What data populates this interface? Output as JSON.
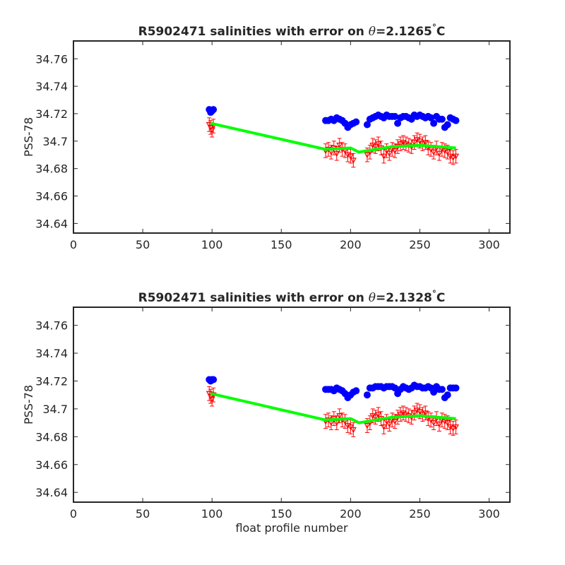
{
  "chart_data": [
    {
      "type": "scatter",
      "title_prefix": "R5902471 salinities with error on ",
      "title_theta": "θ",
      "title_value": "=2.1265",
      "title_degree": "°",
      "title_unit": "C",
      "xlabel": "",
      "ylabel": "PSS-78",
      "xlim": [
        0,
        315
      ],
      "ylim": [
        34.633,
        34.773
      ],
      "xticks": [
        0,
        50,
        100,
        150,
        200,
        250,
        300
      ],
      "yticks": [
        34.64,
        34.66,
        34.68,
        34.7,
        34.72,
        34.74,
        34.76
      ],
      "ytick_labels": [
        "34.64",
        "34.66",
        "34.68",
        "34.7",
        "34.72",
        "34.74",
        "34.76"
      ],
      "grid": false,
      "series": [
        {
          "role": "uncalibrated salinity",
          "color": "#0000ff",
          "marker": "filled-circle",
          "x": [
            98,
            99,
            100,
            101,
            182,
            184,
            186,
            188,
            190,
            192,
            194,
            196,
            198,
            200,
            202,
            204,
            212,
            214,
            216,
            218,
            220,
            222,
            224,
            226,
            228,
            230,
            232,
            234,
            236,
            238,
            240,
            242,
            244,
            246,
            248,
            250,
            252,
            254,
            256,
            258,
            260,
            262,
            264,
            266,
            268,
            270,
            272,
            274,
            276
          ],
          "y": [
            34.723,
            34.721,
            34.722,
            34.723,
            34.715,
            34.715,
            34.716,
            34.715,
            34.717,
            34.716,
            34.715,
            34.713,
            34.71,
            34.712,
            34.713,
            34.714,
            34.712,
            34.716,
            34.717,
            34.718,
            34.719,
            34.718,
            34.717,
            34.719,
            34.718,
            34.718,
            34.718,
            34.713,
            34.717,
            34.718,
            34.718,
            34.717,
            34.716,
            34.719,
            34.718,
            34.719,
            34.718,
            34.717,
            34.718,
            34.717,
            34.713,
            34.718,
            34.716,
            34.716,
            34.71,
            34.712,
            34.717,
            34.716,
            34.715
          ]
        },
        {
          "role": "calibrated salinity with error",
          "color": "#ff0000",
          "marker": "triangle-down",
          "x": [
            98,
            99,
            100,
            101,
            182,
            184,
            186,
            188,
            190,
            192,
            194,
            196,
            198,
            200,
            202,
            212,
            214,
            216,
            218,
            220,
            222,
            224,
            226,
            228,
            230,
            232,
            234,
            236,
            238,
            240,
            242,
            244,
            246,
            248,
            250,
            252,
            254,
            256,
            258,
            260,
            262,
            264,
            266,
            268,
            270,
            272,
            274,
            276
          ],
          "y": [
            34.712,
            34.71,
            34.708,
            34.711,
            34.693,
            34.694,
            34.692,
            34.695,
            34.691,
            34.697,
            34.694,
            34.693,
            34.69,
            34.689,
            34.686,
            34.69,
            34.692,
            34.697,
            34.696,
            34.698,
            34.695,
            34.689,
            34.693,
            34.691,
            34.694,
            34.693,
            34.696,
            34.698,
            34.699,
            34.698,
            34.697,
            34.696,
            34.699,
            34.701,
            34.7,
            34.698,
            34.699,
            34.695,
            34.694,
            34.692,
            34.695,
            34.691,
            34.694,
            34.693,
            34.692,
            34.689,
            34.688,
            34.689
          ],
          "error": 0.005
        },
        {
          "role": "calibrated trend",
          "color": "#00ff00",
          "marker": "line",
          "x": [
            99,
            182,
            200,
            206,
            212,
            230,
            250,
            276
          ],
          "y": [
            34.713,
            34.694,
            34.695,
            34.692,
            34.693,
            34.696,
            34.697,
            34.695
          ]
        }
      ]
    },
    {
      "type": "scatter",
      "title_prefix": "R5902471 salinities with error on ",
      "title_theta": "θ",
      "title_value": "=2.1328",
      "title_degree": "°",
      "title_unit": "C",
      "xlabel": "float profile number",
      "ylabel": "PSS-78",
      "xlim": [
        0,
        315
      ],
      "ylim": [
        34.633,
        34.773
      ],
      "xticks": [
        0,
        50,
        100,
        150,
        200,
        250,
        300
      ],
      "yticks": [
        34.64,
        34.66,
        34.68,
        34.7,
        34.72,
        34.74,
        34.76
      ],
      "ytick_labels": [
        "34.64",
        "34.66",
        "34.68",
        "34.7",
        "34.72",
        "34.74",
        "34.76"
      ],
      "grid": false,
      "series": [
        {
          "role": "uncalibrated salinity",
          "color": "#0000ff",
          "marker": "filled-circle",
          "x": [
            98,
            99,
            100,
            101,
            182,
            184,
            186,
            188,
            190,
            192,
            194,
            196,
            198,
            200,
            202,
            204,
            212,
            214,
            216,
            218,
            220,
            222,
            224,
            226,
            228,
            230,
            232,
            234,
            236,
            238,
            240,
            242,
            244,
            246,
            248,
            250,
            252,
            254,
            256,
            258,
            260,
            262,
            264,
            266,
            268,
            270,
            272,
            274,
            276
          ],
          "y": [
            34.721,
            34.72,
            34.721,
            34.721,
            34.714,
            34.714,
            34.714,
            34.713,
            34.715,
            34.714,
            34.713,
            34.711,
            34.708,
            34.71,
            34.712,
            34.713,
            34.71,
            34.715,
            34.715,
            34.716,
            34.716,
            34.716,
            34.715,
            34.716,
            34.716,
            34.716,
            34.715,
            34.711,
            34.714,
            34.716,
            34.715,
            34.714,
            34.715,
            34.717,
            34.716,
            34.716,
            34.715,
            34.715,
            34.716,
            34.715,
            34.712,
            34.716,
            34.714,
            34.714,
            34.708,
            34.71,
            34.715,
            34.715,
            34.715
          ],
          "_": null
        },
        {
          "role": "calibrated salinity with error",
          "color": "#ff0000",
          "marker": "triangle-down",
          "x": [
            98,
            99,
            100,
            101,
            182,
            184,
            186,
            188,
            190,
            192,
            194,
            196,
            198,
            200,
            202,
            212,
            214,
            216,
            218,
            220,
            222,
            224,
            226,
            228,
            230,
            232,
            234,
            236,
            238,
            240,
            242,
            244,
            246,
            248,
            250,
            252,
            254,
            256,
            258,
            260,
            262,
            264,
            266,
            268,
            270,
            272,
            274,
            276
          ],
          "y": [
            34.711,
            34.709,
            34.707,
            34.71,
            34.691,
            34.692,
            34.69,
            34.693,
            34.69,
            34.695,
            34.692,
            34.691,
            34.688,
            34.687,
            34.685,
            34.688,
            34.69,
            34.695,
            34.694,
            34.696,
            34.693,
            34.687,
            34.691,
            34.689,
            34.692,
            34.691,
            34.694,
            34.696,
            34.697,
            34.696,
            34.695,
            34.694,
            34.697,
            34.699,
            34.698,
            34.696,
            34.697,
            34.693,
            34.692,
            34.69,
            34.693,
            34.689,
            34.692,
            34.691,
            34.69,
            34.687,
            34.686,
            34.687
          ],
          "error": 0.005
        },
        {
          "role": "calibrated trend",
          "color": "#00ff00",
          "marker": "line",
          "x": [
            99,
            182,
            200,
            206,
            212,
            230,
            250,
            276
          ],
          "y": [
            34.711,
            34.692,
            34.693,
            34.69,
            34.691,
            34.694,
            34.695,
            34.693
          ]
        }
      ]
    }
  ]
}
